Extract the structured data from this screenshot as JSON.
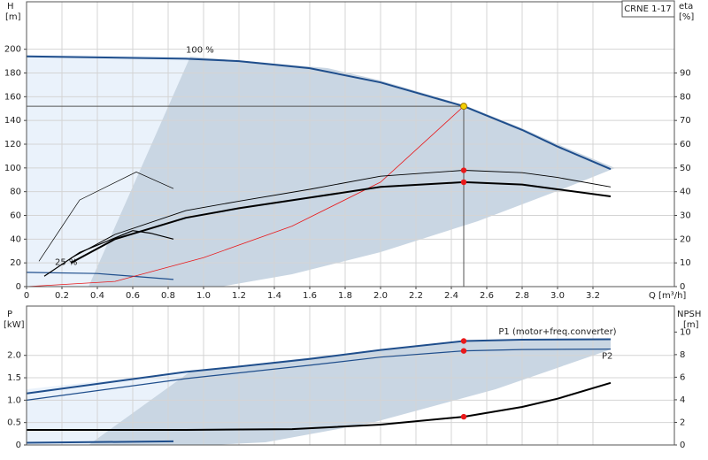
{
  "chart_data": [
    {
      "type": "line",
      "title": "CRNE 1-17",
      "ylabel": "H",
      "ylabel_unit": "[m]",
      "y2label": "eta",
      "y2label_unit": "[%]",
      "xlabel": "Q [m³/h]",
      "xlim": [
        0,
        3.66
      ],
      "xticks": [
        0,
        0.2,
        0.4,
        0.6,
        0.8,
        {
          "value": 1,
          "label": "1.0"
        },
        1.2,
        1.4,
        1.6,
        1.8,
        {
          "value": 2,
          "label": "2.0"
        },
        2.2,
        2.4,
        2.6,
        2.8,
        {
          "value": 3,
          "label": "3.0"
        },
        3.2
      ],
      "ylim": [
        0,
        240
      ],
      "yticks": [
        0,
        20,
        40,
        60,
        80,
        100,
        120,
        140,
        160,
        180,
        200
      ],
      "y2lim": [
        0,
        120
      ],
      "y2ticks": [
        0,
        10,
        20,
        30,
        40,
        50,
        60,
        70,
        80,
        90
      ],
      "grid": true,
      "operating_point": {
        "x": 2.47,
        "y": 152,
        "color": "#f5d000"
      },
      "marker_color": "#e8191b",
      "series": [
        {
          "name": "100 %",
          "color": "#1f4e8c",
          "width": 2,
          "x": [
            0,
            0.9,
            1.2,
            1.6,
            2.0,
            2.47,
            2.8,
            3.0,
            3.3
          ],
          "values": [
            194,
            192,
            190,
            184,
            172,
            152,
            132,
            118,
            99
          ]
        },
        {
          "name": "25 %",
          "color": "#1f4e8c",
          "width": 1.2,
          "x": [
            0,
            0.4,
            0.83
          ],
          "values": [
            12,
            11,
            6
          ]
        },
        {
          "color": "#e8191b",
          "width": 0.8,
          "x": [
            0,
            0.5,
            1.0,
            1.5,
            2.0,
            2.47
          ],
          "values": [
            0,
            4.4,
            24.4,
            51,
            88,
            152
          ]
        },
        {
          "color": "#000000",
          "width": 2,
          "axis": "y2",
          "x": [
            0.25,
            0.5,
            0.9,
            1.2,
            1.6,
            2.0,
            2.47,
            2.8,
            3.0,
            3.3
          ],
          "values": [
            10,
            20,
            29,
            33,
            37.5,
            42,
            44,
            43,
            41,
            38
          ]
        },
        {
          "color": "#000000",
          "width": 0.9,
          "axis": "y2",
          "x": [
            0.25,
            0.5,
            0.9,
            1.2,
            1.6,
            2.0,
            2.47,
            2.8,
            3.0,
            3.3
          ],
          "values": [
            12,
            22,
            32,
            36,
            41,
            46.5,
            49,
            48,
            46,
            42
          ]
        },
        {
          "color": "#000000",
          "width": 0.7,
          "axis": "y2",
          "x": [
            0.07,
            0.3,
            0.62,
            0.83
          ],
          "values": [
            10.7,
            36.5,
            48.3,
            41.3
          ]
        },
        {
          "color": "#000000",
          "width": 1.2,
          "axis": "y2",
          "x": [
            0.1,
            0.3,
            0.6,
            0.7,
            0.83
          ],
          "values": [
            4.4,
            14.4,
            23.6,
            22.5,
            20
          ]
        }
      ]
    },
    {
      "type": "line",
      "ylabel": "P",
      "ylabel_unit": "[kW]",
      "y2label": "NPSH",
      "y2label_unit": "[m]",
      "ylim": [
        0,
        3.1
      ],
      "yticks": [
        0,
        0.5,
        {
          "value": 1,
          "label": "1.0"
        },
        1.5,
        {
          "value": 2,
          "label": "2.0"
        }
      ],
      "y2lim": [
        0,
        12.3
      ],
      "y2ticks": [
        0,
        2,
        4,
        6,
        8,
        10
      ],
      "grid": true,
      "marker_color": "#e8191b",
      "series": [
        {
          "name": "P1 (motor+freq.converter)",
          "color": "#1f4e8c",
          "width": 2,
          "x": [
            0,
            0.9,
            1.2,
            1.6,
            2.0,
            2.47,
            2.8,
            3.3
          ],
          "values": [
            1.15,
            1.63,
            1.75,
            1.92,
            2.12,
            2.32,
            2.35,
            2.36
          ]
        },
        {
          "name": "P2",
          "color": "#1f4e8c",
          "width": 1.2,
          "x": [
            0,
            0.9,
            1.6,
            2.0,
            2.47,
            2.8,
            3.3
          ],
          "values": [
            1.0,
            1.48,
            1.78,
            1.96,
            2.1,
            2.13,
            2.14
          ]
        },
        {
          "color": "#1f4e8c",
          "width": 2,
          "x": [
            0,
            0.83
          ],
          "values": [
            0.05,
            0.08
          ]
        },
        {
          "color": "#000000",
          "width": 2,
          "axis": "y2",
          "x": [
            0,
            0.9,
            1.5,
            2.0,
            2.47,
            2.8,
            3.0,
            3.3
          ],
          "values": [
            1.33,
            1.33,
            1.4,
            1.8,
            2.5,
            3.37,
            4.1,
            5.5
          ]
        }
      ]
    }
  ]
}
